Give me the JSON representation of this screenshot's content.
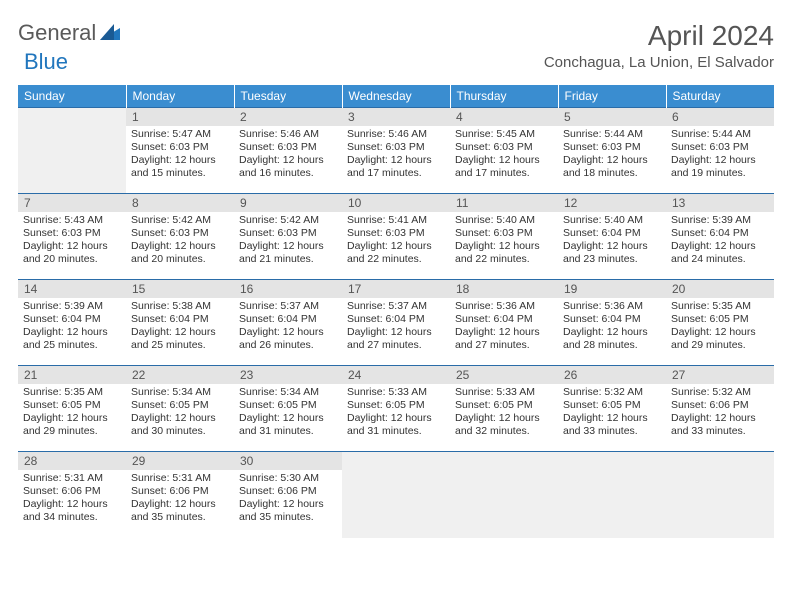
{
  "logo": {
    "word1": "General",
    "word2": "Blue"
  },
  "title": "April 2024",
  "location": "Conchagua, La Union, El Salvador",
  "weekdays": [
    "Sunday",
    "Monday",
    "Tuesday",
    "Wednesday",
    "Thursday",
    "Friday",
    "Saturday"
  ],
  "colors": {
    "header_bg": "#3a8dd0",
    "header_text": "#ffffff",
    "daynum_bg": "#e4e4e4",
    "border": "#2a6ca8",
    "logo_blue": "#2176bd"
  },
  "weeks": [
    [
      null,
      {
        "n": "1",
        "sr": "Sunrise: 5:47 AM",
        "ss": "Sunset: 6:03 PM",
        "dl": "Daylight: 12 hours and 15 minutes."
      },
      {
        "n": "2",
        "sr": "Sunrise: 5:46 AM",
        "ss": "Sunset: 6:03 PM",
        "dl": "Daylight: 12 hours and 16 minutes."
      },
      {
        "n": "3",
        "sr": "Sunrise: 5:46 AM",
        "ss": "Sunset: 6:03 PM",
        "dl": "Daylight: 12 hours and 17 minutes."
      },
      {
        "n": "4",
        "sr": "Sunrise: 5:45 AM",
        "ss": "Sunset: 6:03 PM",
        "dl": "Daylight: 12 hours and 17 minutes."
      },
      {
        "n": "5",
        "sr": "Sunrise: 5:44 AM",
        "ss": "Sunset: 6:03 PM",
        "dl": "Daylight: 12 hours and 18 minutes."
      },
      {
        "n": "6",
        "sr": "Sunrise: 5:44 AM",
        "ss": "Sunset: 6:03 PM",
        "dl": "Daylight: 12 hours and 19 minutes."
      }
    ],
    [
      {
        "n": "7",
        "sr": "Sunrise: 5:43 AM",
        "ss": "Sunset: 6:03 PM",
        "dl": "Daylight: 12 hours and 20 minutes."
      },
      {
        "n": "8",
        "sr": "Sunrise: 5:42 AM",
        "ss": "Sunset: 6:03 PM",
        "dl": "Daylight: 12 hours and 20 minutes."
      },
      {
        "n": "9",
        "sr": "Sunrise: 5:42 AM",
        "ss": "Sunset: 6:03 PM",
        "dl": "Daylight: 12 hours and 21 minutes."
      },
      {
        "n": "10",
        "sr": "Sunrise: 5:41 AM",
        "ss": "Sunset: 6:03 PM",
        "dl": "Daylight: 12 hours and 22 minutes."
      },
      {
        "n": "11",
        "sr": "Sunrise: 5:40 AM",
        "ss": "Sunset: 6:03 PM",
        "dl": "Daylight: 12 hours and 22 minutes."
      },
      {
        "n": "12",
        "sr": "Sunrise: 5:40 AM",
        "ss": "Sunset: 6:04 PM",
        "dl": "Daylight: 12 hours and 23 minutes."
      },
      {
        "n": "13",
        "sr": "Sunrise: 5:39 AM",
        "ss": "Sunset: 6:04 PM",
        "dl": "Daylight: 12 hours and 24 minutes."
      }
    ],
    [
      {
        "n": "14",
        "sr": "Sunrise: 5:39 AM",
        "ss": "Sunset: 6:04 PM",
        "dl": "Daylight: 12 hours and 25 minutes."
      },
      {
        "n": "15",
        "sr": "Sunrise: 5:38 AM",
        "ss": "Sunset: 6:04 PM",
        "dl": "Daylight: 12 hours and 25 minutes."
      },
      {
        "n": "16",
        "sr": "Sunrise: 5:37 AM",
        "ss": "Sunset: 6:04 PM",
        "dl": "Daylight: 12 hours and 26 minutes."
      },
      {
        "n": "17",
        "sr": "Sunrise: 5:37 AM",
        "ss": "Sunset: 6:04 PM",
        "dl": "Daylight: 12 hours and 27 minutes."
      },
      {
        "n": "18",
        "sr": "Sunrise: 5:36 AM",
        "ss": "Sunset: 6:04 PM",
        "dl": "Daylight: 12 hours and 27 minutes."
      },
      {
        "n": "19",
        "sr": "Sunrise: 5:36 AM",
        "ss": "Sunset: 6:04 PM",
        "dl": "Daylight: 12 hours and 28 minutes."
      },
      {
        "n": "20",
        "sr": "Sunrise: 5:35 AM",
        "ss": "Sunset: 6:05 PM",
        "dl": "Daylight: 12 hours and 29 minutes."
      }
    ],
    [
      {
        "n": "21",
        "sr": "Sunrise: 5:35 AM",
        "ss": "Sunset: 6:05 PM",
        "dl": "Daylight: 12 hours and 29 minutes."
      },
      {
        "n": "22",
        "sr": "Sunrise: 5:34 AM",
        "ss": "Sunset: 6:05 PM",
        "dl": "Daylight: 12 hours and 30 minutes."
      },
      {
        "n": "23",
        "sr": "Sunrise: 5:34 AM",
        "ss": "Sunset: 6:05 PM",
        "dl": "Daylight: 12 hours and 31 minutes."
      },
      {
        "n": "24",
        "sr": "Sunrise: 5:33 AM",
        "ss": "Sunset: 6:05 PM",
        "dl": "Daylight: 12 hours and 31 minutes."
      },
      {
        "n": "25",
        "sr": "Sunrise: 5:33 AM",
        "ss": "Sunset: 6:05 PM",
        "dl": "Daylight: 12 hours and 32 minutes."
      },
      {
        "n": "26",
        "sr": "Sunrise: 5:32 AM",
        "ss": "Sunset: 6:05 PM",
        "dl": "Daylight: 12 hours and 33 minutes."
      },
      {
        "n": "27",
        "sr": "Sunrise: 5:32 AM",
        "ss": "Sunset: 6:06 PM",
        "dl": "Daylight: 12 hours and 33 minutes."
      }
    ],
    [
      {
        "n": "28",
        "sr": "Sunrise: 5:31 AM",
        "ss": "Sunset: 6:06 PM",
        "dl": "Daylight: 12 hours and 34 minutes."
      },
      {
        "n": "29",
        "sr": "Sunrise: 5:31 AM",
        "ss": "Sunset: 6:06 PM",
        "dl": "Daylight: 12 hours and 35 minutes."
      },
      {
        "n": "30",
        "sr": "Sunrise: 5:30 AM",
        "ss": "Sunset: 6:06 PM",
        "dl": "Daylight: 12 hours and 35 minutes."
      },
      null,
      null,
      null,
      null
    ]
  ]
}
